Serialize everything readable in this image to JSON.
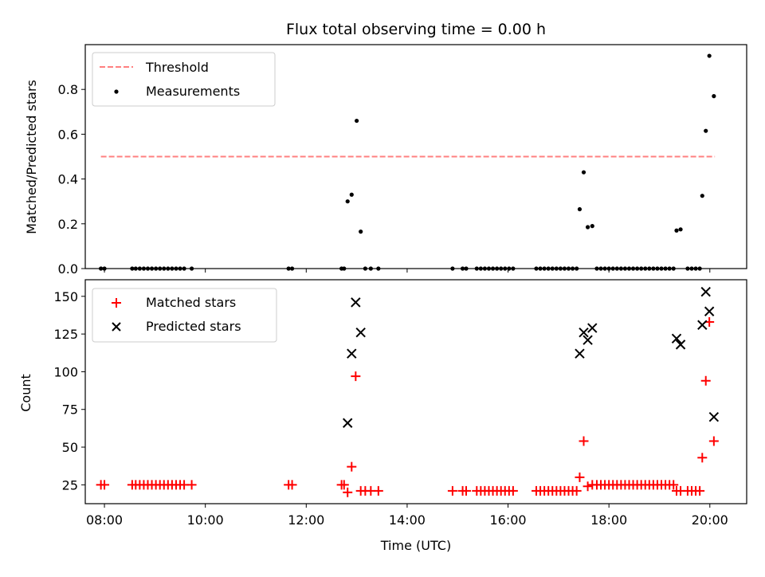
{
  "chart_data": {
    "title": "Flux total observing time = 0.00 h",
    "xlabel": "Time (UTC)",
    "x_unit": "hour (UTC)",
    "xlim_hours": [
      7.62,
      20.73
    ],
    "x_ticks": [
      {
        "value": 8,
        "label": "08:00"
      },
      {
        "value": 10,
        "label": "10:00"
      },
      {
        "value": 12,
        "label": "12:00"
      },
      {
        "value": 14,
        "label": "14:00"
      },
      {
        "value": 16,
        "label": "16:00"
      },
      {
        "value": 18,
        "label": "18:00"
      },
      {
        "value": 20,
        "label": "20:00"
      }
    ],
    "panels": [
      {
        "type": "scatter",
        "ylabel": "Matched/Predicted stars",
        "ylim": [
          0,
          1.0
        ],
        "y_ticks": [
          "0.0",
          "0.2",
          "0.4",
          "0.6",
          "0.8"
        ],
        "legend": {
          "placement": "upper-left",
          "entries": [
            "Threshold",
            "Measurements"
          ]
        },
        "series": [
          {
            "name": "Threshold",
            "kind": "dashed-line",
            "color": "#ff8080",
            "x": [
              7.93,
              20.1
            ],
            "y": [
              0.5,
              0.5
            ]
          },
          {
            "name": "Measurements",
            "kind": "dot",
            "color": "#000000",
            "x": [
              7.93,
              8.0,
              8.55,
              8.62,
              8.7,
              8.78,
              8.86,
              8.94,
              9.02,
              9.1,
              9.18,
              9.26,
              9.34,
              9.42,
              9.5,
              9.58,
              9.73,
              11.65,
              11.72,
              12.7,
              12.75,
              12.82,
              12.9,
              13.0,
              13.08,
              13.17,
              13.28,
              13.43,
              14.9,
              15.1,
              15.17,
              15.38,
              15.46,
              15.54,
              15.62,
              15.7,
              15.78,
              15.86,
              15.94,
              16.02,
              16.1,
              16.56,
              16.64,
              16.72,
              16.8,
              16.88,
              16.96,
              17.04,
              17.12,
              17.2,
              17.28,
              17.36,
              17.42,
              17.5,
              17.58,
              17.67,
              17.76,
              17.84,
              17.92,
              18.0,
              18.08,
              18.16,
              18.24,
              18.32,
              18.4,
              18.48,
              18.56,
              18.64,
              18.72,
              18.8,
              18.88,
              18.96,
              19.04,
              19.12,
              19.2,
              19.28,
              19.34,
              19.42,
              19.56,
              19.64,
              19.72,
              19.8,
              19.85,
              19.92,
              19.99,
              20.08
            ],
            "y": [
              0,
              0,
              0,
              0,
              0,
              0,
              0,
              0,
              0,
              0,
              0,
              0,
              0,
              0,
              0,
              0,
              0,
              0,
              0,
              0,
              0,
              0.3,
              0.33,
              0.66,
              0.165,
              0,
              0,
              0,
              0,
              0,
              0,
              0,
              0,
              0,
              0,
              0,
              0,
              0,
              0,
              0,
              0,
              0,
              0,
              0,
              0,
              0,
              0,
              0,
              0,
              0,
              0,
              0,
              0.265,
              0.43,
              0.185,
              0.19,
              0,
              0,
              0,
              0,
              0,
              0,
              0,
              0,
              0,
              0,
              0,
              0,
              0,
              0,
              0,
              0,
              0,
              0,
              0,
              0,
              0.17,
              0.175,
              0,
              0,
              0,
              0,
              0.325,
              0.615,
              0.95,
              0.77
            ]
          }
        ]
      },
      {
        "type": "scatter",
        "ylabel": "Count",
        "ylim": [
          12.5,
          161
        ],
        "y_ticks": [
          "25",
          "50",
          "75",
          "100",
          "125",
          "150"
        ],
        "legend": {
          "placement": "upper-left",
          "entries": [
            "Matched stars",
            "Predicted stars"
          ]
        },
        "series": [
          {
            "name": "Matched stars",
            "kind": "plus",
            "color": "#ff0000",
            "x": [
              7.93,
              8.0,
              8.55,
              8.62,
              8.7,
              8.78,
              8.86,
              8.94,
              9.02,
              9.1,
              9.18,
              9.26,
              9.34,
              9.42,
              9.5,
              9.58,
              9.73,
              11.65,
              11.72,
              12.7,
              12.75,
              12.82,
              12.9,
              12.98,
              13.08,
              13.17,
              13.28,
              13.43,
              14.9,
              15.1,
              15.17,
              15.38,
              15.46,
              15.54,
              15.62,
              15.7,
              15.78,
              15.86,
              15.94,
              16.02,
              16.1,
              16.56,
              16.64,
              16.72,
              16.8,
              16.88,
              16.96,
              17.04,
              17.12,
              17.2,
              17.28,
              17.36,
              17.42,
              17.5,
              17.58,
              17.67,
              17.76,
              17.84,
              17.92,
              18.0,
              18.08,
              18.16,
              18.24,
              18.32,
              18.4,
              18.48,
              18.56,
              18.64,
              18.72,
              18.8,
              18.88,
              18.96,
              19.04,
              19.12,
              19.2,
              19.28,
              19.34,
              19.42,
              19.56,
              19.64,
              19.72,
              19.8,
              19.85,
              19.92,
              19.99,
              20.08
            ],
            "y": [
              25,
              25,
              25,
              25,
              25,
              25,
              25,
              25,
              25,
              25,
              25,
              25,
              25,
              25,
              25,
              25,
              25,
              25,
              25,
              25,
              25,
              20,
              37,
              97,
              21,
              21,
              21,
              21,
              21,
              21,
              21,
              21,
              21,
              21,
              21,
              21,
              21,
              21,
              21,
              21,
              21,
              21,
              21,
              21,
              21,
              21,
              21,
              21,
              21,
              21,
              21,
              21,
              30,
              54,
              24,
              25,
              25,
              25,
              25,
              25,
              25,
              25,
              25,
              25,
              25,
              25,
              25,
              25,
              25,
              25,
              25,
              25,
              25,
              25,
              25,
              25,
              21,
              21,
              21,
              21,
              21,
              21,
              43,
              94,
              133,
              54
            ]
          },
          {
            "name": "Predicted stars",
            "kind": "x",
            "color": "#000000",
            "x": [
              12.82,
              12.9,
              12.98,
              13.08,
              17.42,
              17.5,
              17.58,
              17.67,
              19.34,
              19.42,
              19.85,
              19.92,
              19.99,
              20.08
            ],
            "y": [
              66,
              112,
              146,
              126,
              112,
              126,
              121,
              129,
              122,
              118,
              131,
              153,
              140,
              70
            ]
          }
        ]
      }
    ]
  }
}
